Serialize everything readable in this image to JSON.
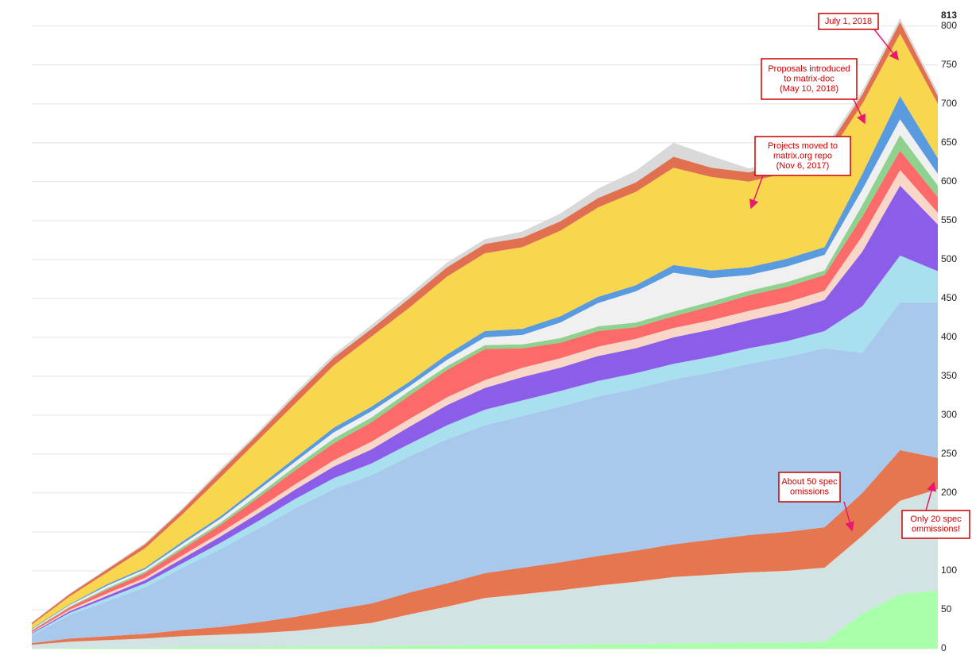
{
  "chart_data": {
    "type": "stacked-area",
    "categories": [
      null,
      null,
      null,
      null,
      null,
      null,
      null,
      null,
      null,
      null,
      null,
      null,
      null,
      null,
      null,
      null,
      null,
      null,
      null,
      null,
      null,
      null,
      null,
      null,
      null
    ],
    "ylim": [
      0,
      813
    ],
    "yticks": [
      0,
      50,
      100,
      150,
      200,
      250,
      300,
      350,
      400,
      450,
      500,
      550,
      600,
      650,
      700,
      750,
      800
    ],
    "grid": true,
    "series": [
      {
        "color": "#aaffaa",
        "values": [
          0,
          1,
          1,
          1,
          2,
          2,
          2,
          3,
          3,
          3,
          4,
          4,
          5,
          5,
          5,
          6,
          6,
          7,
          7,
          8,
          8,
          9,
          45,
          70,
          75
        ]
      },
      {
        "color": "#d1e3e3",
        "values": [
          5,
          8,
          10,
          12,
          14,
          16,
          18,
          20,
          25,
          30,
          40,
          50,
          60,
          65,
          70,
          75,
          80,
          85,
          88,
          90,
          92,
          95,
          100,
          120,
          130
        ]
      },
      {
        "color": "#e6764f",
        "values": [
          2,
          4,
          5,
          6,
          8,
          10,
          14,
          18,
          22,
          25,
          28,
          30,
          32,
          34,
          36,
          38,
          40,
          42,
          45,
          48,
          50,
          52,
          55,
          65,
          40
        ]
      },
      {
        "color": "#a9c9ec",
        "values": [
          10,
          30,
          45,
          60,
          80,
          100,
          120,
          140,
          155,
          165,
          175,
          185,
          190,
          195,
          200,
          205,
          208,
          212,
          215,
          220,
          225,
          230,
          180,
          190,
          200
        ]
      },
      {
        "color": "#a8e0ef",
        "values": [
          2,
          3,
          4,
          5,
          6,
          8,
          10,
          12,
          14,
          15,
          16,
          18,
          20,
          20,
          20,
          20,
          20,
          20,
          20,
          20,
          20,
          22,
          60,
          60,
          40
        ]
      },
      {
        "color": "#8b5de8",
        "values": [
          1,
          2,
          3,
          4,
          6,
          8,
          10,
          12,
          15,
          18,
          22,
          26,
          28,
          30,
          30,
          32,
          32,
          34,
          35,
          36,
          38,
          40,
          70,
          90,
          60
        ]
      },
      {
        "color": "#f8d6c8",
        "values": [
          1,
          2,
          3,
          3,
          4,
          5,
          6,
          7,
          8,
          10,
          10,
          10,
          10,
          12,
          12,
          12,
          12,
          12,
          12,
          12,
          12,
          12,
          20,
          20,
          15
        ]
      },
      {
        "color": "#fd6a6a",
        "values": [
          2,
          3,
          5,
          6,
          8,
          10,
          14,
          18,
          22,
          25,
          30,
          35,
          40,
          25,
          20,
          20,
          15,
          15,
          18,
          20,
          20,
          20,
          25,
          25,
          20
        ]
      },
      {
        "color": "#8fd18f",
        "values": [
          1,
          1,
          2,
          2,
          3,
          3,
          4,
          5,
          6,
          6,
          6,
          5,
          5,
          5,
          6,
          6,
          6,
          6,
          6,
          6,
          6,
          6,
          15,
          20,
          15
        ]
      },
      {
        "color": "#f0f0f0",
        "values": [
          1,
          2,
          3,
          3,
          4,
          5,
          6,
          6,
          8,
          8,
          6,
          8,
          10,
          12,
          20,
          30,
          40,
          50,
          30,
          20,
          20,
          20,
          20,
          20,
          15
        ]
      },
      {
        "color": "#5a9be0",
        "values": [
          1,
          1,
          2,
          2,
          3,
          3,
          4,
          5,
          6,
          6,
          6,
          7,
          8,
          8,
          8,
          8,
          8,
          10,
          10,
          10,
          10,
          10,
          20,
          30,
          20
        ]
      },
      {
        "color": "#f8d64e",
        "values": [
          5,
          10,
          15,
          25,
          35,
          50,
          60,
          70,
          80,
          90,
          95,
          100,
          100,
          105,
          110,
          115,
          120,
          125,
          120,
          110,
          110,
          110,
          90,
          80,
          70
        ]
      },
      {
        "color": "#e07050",
        "values": [
          2,
          3,
          4,
          5,
          6,
          8,
          8,
          10,
          10,
          10,
          12,
          12,
          12,
          12,
          12,
          12,
          12,
          14,
          12,
          12,
          12,
          12,
          12,
          15,
          10
        ]
      },
      {
        "color": "#d9d9d9",
        "values": [
          1,
          1,
          1,
          2,
          2,
          3,
          3,
          4,
          4,
          5,
          5,
          6,
          6,
          8,
          10,
          12,
          15,
          18,
          15,
          5,
          5,
          5,
          5,
          5,
          5
        ]
      }
    ],
    "annotations": [
      {
        "lines": [
          "July 1, 2018"
        ]
      },
      {
        "lines": [
          "Proposals introduced",
          "to matrix-doc",
          "(May 10, 2018)"
        ]
      },
      {
        "lines": [
          "Projects moved to",
          "matrix.org repo",
          "(Nov 6, 2017)"
        ]
      },
      {
        "lines": [
          "About 50 spec",
          "omissions"
        ]
      },
      {
        "lines": [
          "Only 20 spec",
          "ommissions!"
        ]
      }
    ]
  }
}
